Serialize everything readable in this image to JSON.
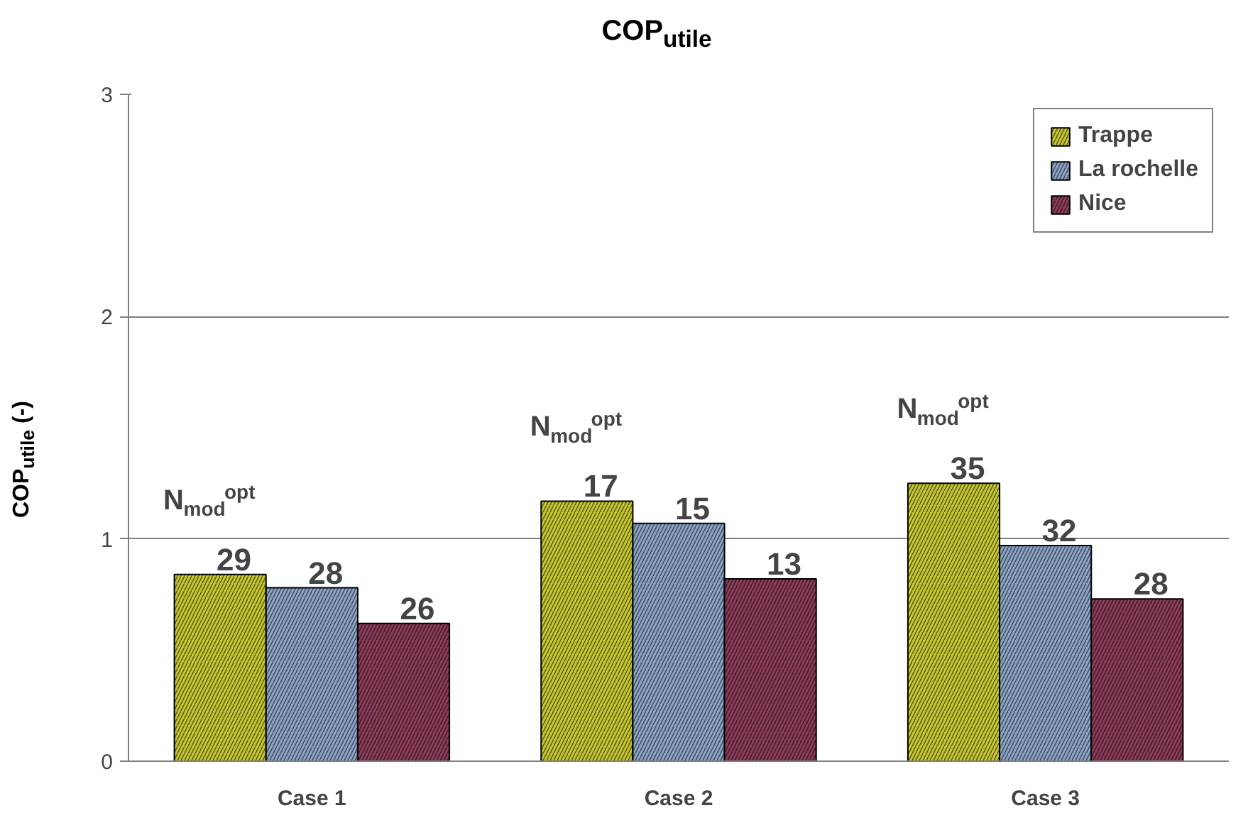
{
  "chart_data": {
    "type": "bar",
    "title": "COP$_{utile}$",
    "ylabel": "COP$_{utile}$ (-)",
    "categories": [
      "Case 1",
      "Case 2",
      "Case 3"
    ],
    "series": [
      {
        "name": "Trappe",
        "color": "#c8c832",
        "values": [
          0.84,
          1.17,
          1.25
        ]
      },
      {
        "name": "La rochelle",
        "color": "#8ca5c8",
        "values": [
          0.78,
          1.07,
          0.97
        ]
      },
      {
        "name": "Nice",
        "color": "#8c3c5a",
        "values": [
          0.62,
          0.82,
          0.73
        ]
      }
    ],
    "annotations": [
      "N$_{mod}$$^{opt}$",
      "N$_{mod}$$^{opt}$",
      "N$_{mod}$$^{opt}$",
      "29",
      "28",
      "26",
      "17",
      "15",
      "13",
      "35",
      "32",
      "28"
    ],
    "ylim": [
      0,
      3
    ],
    "yticks": [
      0,
      1,
      2,
      3
    ],
    "grid": "y",
    "legend": "top right"
  }
}
